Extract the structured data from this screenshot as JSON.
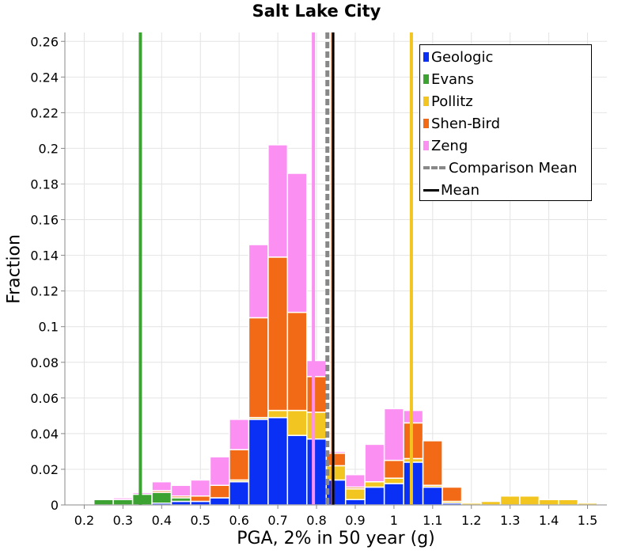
{
  "chart_data": {
    "type": "bar",
    "stacked": true,
    "title": "Salt Lake City",
    "xlabel": "PGA, 2% in 50 year (g)",
    "ylabel": "Fraction",
    "xlim": [
      0.15,
      1.55
    ],
    "ylim": [
      0,
      0.265
    ],
    "xticks": [
      0.2,
      0.3,
      0.4,
      0.5,
      0.6,
      0.7,
      0.8,
      0.9,
      1,
      1.1,
      1.2,
      1.3,
      1.4,
      1.5
    ],
    "xtick_labels": [
      "0.2",
      "0.3",
      "0.4",
      "0.5",
      "0.6",
      "0.7",
      "0.8",
      "0.9",
      "1",
      "1.1",
      "1.2",
      "1.3",
      "1.4",
      "1.5"
    ],
    "yticks": [
      0,
      0.02,
      0.04,
      0.06,
      0.08,
      0.1,
      0.12,
      0.14,
      0.16,
      0.18,
      0.2,
      0.22,
      0.24,
      0.26
    ],
    "ytick_labels": [
      "0",
      "0.02",
      "0.04",
      "0.06",
      "0.08",
      "0.1",
      "0.12",
      "0.14",
      "0.16",
      "0.18",
      "0.2",
      "0.22",
      "0.24",
      "0.26"
    ],
    "bin_width": 0.05,
    "x": [
      0.2,
      0.25,
      0.3,
      0.35,
      0.4,
      0.45,
      0.5,
      0.55,
      0.6,
      0.65,
      0.7,
      0.75,
      0.8,
      0.85,
      0.9,
      0.95,
      1.0,
      1.05,
      1.1,
      1.15,
      1.2,
      1.25,
      1.3,
      1.35,
      1.4,
      1.45,
      1.5
    ],
    "series": [
      {
        "name": "Geologic",
        "color": "#0a2ff5",
        "values": [
          0,
          0,
          0,
          0,
          0.001,
          0.002,
          0.002,
          0.004,
          0.013,
          0.048,
          0.049,
          0.039,
          0.037,
          0.014,
          0.003,
          0.01,
          0.012,
          0.024,
          0.01,
          0.001,
          0,
          0,
          0,
          0,
          0,
          0,
          0
        ]
      },
      {
        "name": "Evans",
        "color": "#3ca231",
        "values": [
          0,
          0.003,
          0.003,
          0.006,
          0.006,
          0.002,
          0,
          0,
          0,
          0,
          0,
          0,
          0,
          0,
          0,
          0,
          0,
          0,
          0,
          0,
          0,
          0,
          0,
          0,
          0,
          0,
          0
        ]
      },
      {
        "name": "Pollitz",
        "color": "#f2c520",
        "values": [
          0,
          0,
          0,
          0,
          0,
          0,
          0,
          0,
          0.001,
          0.001,
          0.004,
          0.014,
          0.015,
          0.008,
          0.006,
          0.003,
          0.003,
          0.002,
          0.001,
          0.001,
          0.001,
          0.002,
          0.005,
          0.005,
          0.003,
          0.003,
          0.001
        ]
      },
      {
        "name": "Shen-Bird",
        "color": "#f26a15",
        "values": [
          0,
          0,
          0,
          0,
          0.001,
          0.001,
          0.003,
          0.007,
          0.017,
          0.056,
          0.086,
          0.055,
          0.02,
          0.007,
          0.001,
          0,
          0.01,
          0.02,
          0.025,
          0.008,
          0,
          0,
          0,
          0,
          0,
          0,
          0
        ]
      },
      {
        "name": "Zeng",
        "color": "#fb8ff2",
        "values": [
          0,
          0,
          0.001,
          0.001,
          0.005,
          0.006,
          0.009,
          0.016,
          0.017,
          0.041,
          0.063,
          0.078,
          0.009,
          0.001,
          0.007,
          0.021,
          0.029,
          0.007,
          0,
          0,
          0,
          0,
          0,
          0,
          0,
          0,
          0
        ]
      }
    ],
    "vertical_lines": [
      {
        "name": "Evans",
        "x": 0.345,
        "color": "#3ca231",
        "style": "solid"
      },
      {
        "name": "Zeng",
        "x": 0.792,
        "color": "#fb8ff2",
        "style": "solid"
      },
      {
        "name": "Pollitz",
        "x": 1.045,
        "color": "#f2c520",
        "style": "solid"
      },
      {
        "name": "Comparison Mean",
        "x": 0.828,
        "color": "#888888",
        "style": "dashed"
      },
      {
        "name": "Shen-Bird",
        "x": 0.842,
        "color": "#f26a15",
        "style": "solid"
      },
      {
        "name": "Mean",
        "x": 0.843,
        "color": "#000000",
        "style": "solid"
      }
    ],
    "legend": {
      "position": "top-right",
      "entries": [
        {
          "label": "Geologic",
          "kind": "swatch",
          "color": "#0a2ff5"
        },
        {
          "label": "Evans",
          "kind": "swatch",
          "color": "#3ca231"
        },
        {
          "label": "Pollitz",
          "kind": "swatch",
          "color": "#f2c520"
        },
        {
          "label": "Shen-Bird",
          "kind": "swatch",
          "color": "#f26a15"
        },
        {
          "label": "Zeng",
          "kind": "swatch",
          "color": "#fb8ff2"
        },
        {
          "label": "Comparison Mean",
          "kind": "dashed",
          "color": "#888888"
        },
        {
          "label": "Mean",
          "kind": "line",
          "color": "#000000"
        }
      ]
    },
    "grid": true
  }
}
